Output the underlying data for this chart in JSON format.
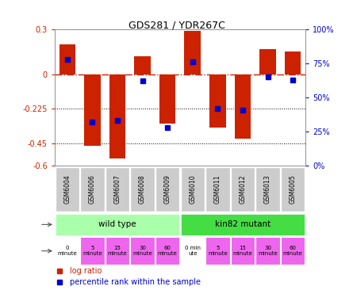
{
  "title": "GDS281 / YDR267C",
  "samples": [
    "GSM6004",
    "GSM6006",
    "GSM6007",
    "GSM6008",
    "GSM6009",
    "GSM6010",
    "GSM6011",
    "GSM6012",
    "GSM6013",
    "GSM6005"
  ],
  "log_ratios": [
    0.2,
    -0.47,
    -0.55,
    0.12,
    -0.32,
    0.29,
    -0.35,
    -0.42,
    0.17,
    0.15
  ],
  "percentile_ranks": [
    78,
    32,
    33,
    62,
    28,
    76,
    42,
    41,
    65,
    63
  ],
  "ylim": [
    -0.6,
    0.3
  ],
  "yticks_left": [
    0.3,
    0.0,
    -0.225,
    -0.45,
    -0.6
  ],
  "yticks_right_pct": [
    100,
    75,
    50,
    25,
    0
  ],
  "yticks_right_vals": [
    0.3,
    0.075,
    -0.15,
    -0.375,
    -0.6
  ],
  "bar_color": "#cc2200",
  "square_color": "#0000cc",
  "zero_line_color": "#cc2200",
  "dotted_line_color": "#000000",
  "dotted_lines": [
    -0.225,
    -0.45
  ],
  "strain_labels": [
    "wild type",
    "kin82 mutant"
  ],
  "strain_colors": [
    "#aaffaa",
    "#44dd44"
  ],
  "time_labels_wt": [
    "0\nminute",
    "5\nminute",
    "15\nminute",
    "30\nminute",
    "60\nminute"
  ],
  "time_labels_mut": [
    "0 min\nute",
    "5\nminute",
    "15\nminute",
    "30\nminute",
    "60\nminute"
  ],
  "time_colors": [
    "#ffffff",
    "#ee66ee",
    "#ee66ee",
    "#ee66ee",
    "#ee66ee",
    "#ffffff",
    "#ee66ee",
    "#ee66ee",
    "#ee66ee",
    "#ee66ee"
  ],
  "bg_color": "#ffffff",
  "tick_label_color_left": "#cc2200",
  "tick_label_color_right": "#0000cc",
  "header_bg": "#cccccc",
  "legend_red": "log ratio",
  "legend_blue": "percentile rank within the sample"
}
